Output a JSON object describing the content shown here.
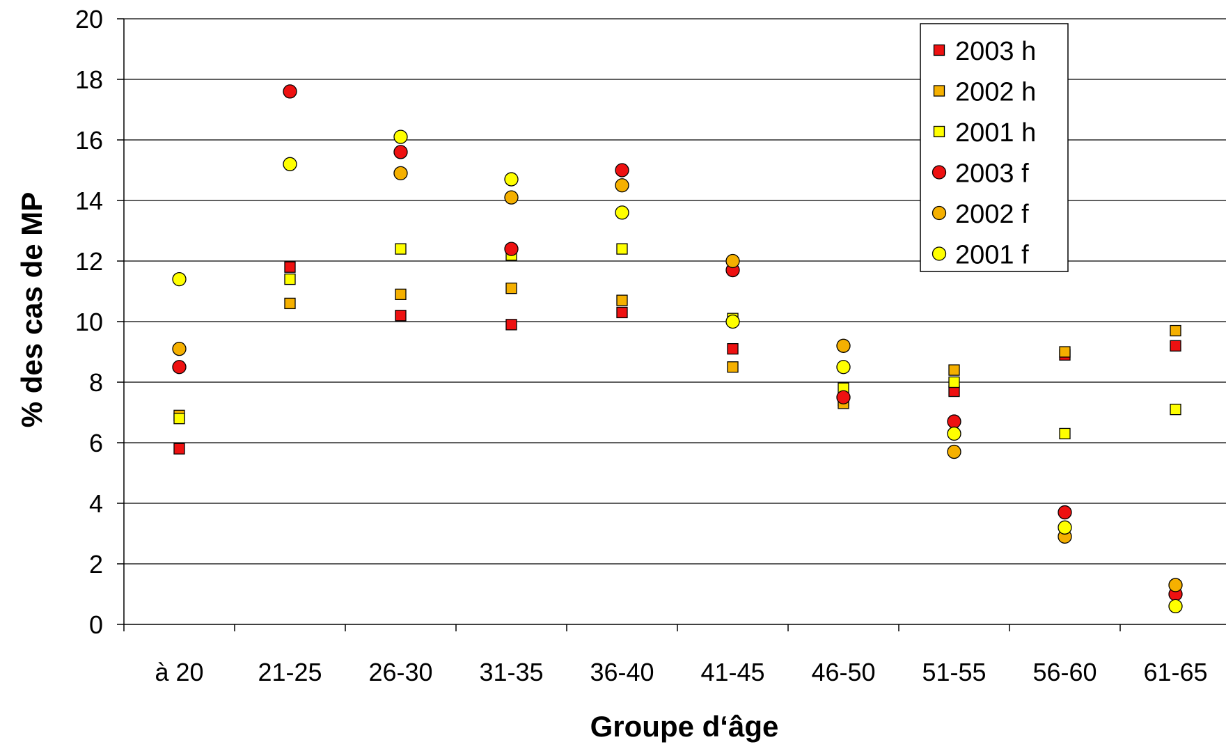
{
  "chart_data": {
    "type": "scatter",
    "title": "",
    "xlabel": "Groupe d‘âge",
    "ylabel": "% des cas de MP",
    "ylim": [
      0,
      20
    ],
    "yticks": [
      "0",
      "2",
      "4",
      "6",
      "8",
      "10",
      "12",
      "14",
      "16",
      "18",
      "20"
    ],
    "categories": [
      "à 20",
      "21-25",
      "26-30",
      "31-35",
      "36-40",
      "41-45",
      "46-50",
      "51-55",
      "56-60",
      "61-65"
    ],
    "grid": true,
    "legend_position": "top-right",
    "series": [
      {
        "name": "2003 h",
        "marker": "square",
        "color": "#ee1111",
        "values": [
          5.8,
          11.8,
          10.2,
          9.9,
          10.3,
          9.1,
          7.4,
          7.7,
          8.9,
          9.2
        ]
      },
      {
        "name": "2002 h",
        "marker": "square",
        "color": "#f5b000",
        "values": [
          6.9,
          10.6,
          10.9,
          11.1,
          10.7,
          8.5,
          7.3,
          8.4,
          9.0,
          9.7
        ]
      },
      {
        "name": "2001 h",
        "marker": "square",
        "color": "#ffff00",
        "values": [
          6.8,
          11.4,
          12.4,
          12.2,
          12.4,
          10.1,
          7.8,
          8.0,
          6.3,
          7.1
        ]
      },
      {
        "name": "2003 f",
        "marker": "circle",
        "color": "#ee1111",
        "values": [
          8.5,
          17.6,
          15.6,
          12.4,
          15.0,
          11.7,
          7.5,
          6.7,
          3.7,
          1.0
        ]
      },
      {
        "name": "2002 f",
        "marker": "circle",
        "color": "#f5b000",
        "values": [
          9.1,
          null,
          14.9,
          14.1,
          14.5,
          12.0,
          9.2,
          5.7,
          2.9,
          1.3
        ]
      },
      {
        "name": "2001 f",
        "marker": "circle",
        "color": "#ffff00",
        "values": [
          11.4,
          15.2,
          16.1,
          14.7,
          13.6,
          10.0,
          8.5,
          6.3,
          3.2,
          0.6
        ]
      }
    ]
  }
}
